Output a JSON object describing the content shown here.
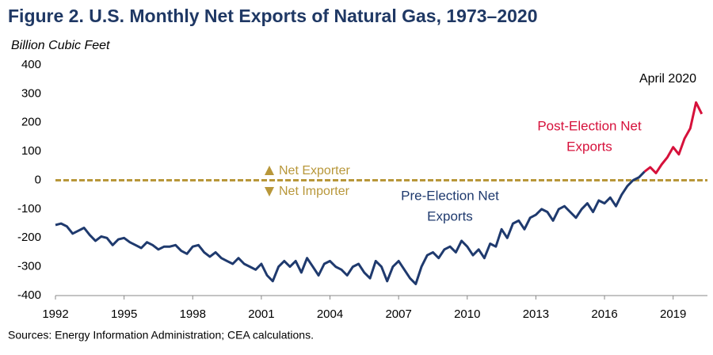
{
  "chart_data": {
    "type": "line",
    "title": "Figure 2. U.S. Monthly Net Exports of Natural Gas, 1973–2020",
    "subtitle": "Billion Cubic Feet",
    "source": "Sources: Energy Information Administration; CEA calculations.",
    "annotations": {
      "exporter": "Net Exporter",
      "importer": "Net Importer",
      "latest": "April 2020"
    },
    "xlim": [
      1992,
      2020.5
    ],
    "xticks": [
      1992,
      1995,
      1998,
      2001,
      2004,
      2007,
      2010,
      2013,
      2016,
      2019
    ],
    "ylim": [
      -400,
      400
    ],
    "yticks": [
      400,
      300,
      200,
      100,
      0,
      -100,
      -200,
      -300,
      -400
    ],
    "reference_color": "#b8973a",
    "series": [
      {
        "name": "Pre-Election Net Exports",
        "label_lines": [
          "Pre-Election Net",
          "Exports"
        ],
        "color": "#1f3a6e",
        "x": [
          1992,
          1992.25,
          1992.5,
          1992.75,
          1993,
          1993.25,
          1993.5,
          1993.75,
          1994,
          1994.25,
          1994.5,
          1994.75,
          1995,
          1995.25,
          1995.5,
          1995.75,
          1996,
          1996.25,
          1996.5,
          1996.75,
          1997,
          1997.25,
          1997.5,
          1997.75,
          1998,
          1998.25,
          1998.5,
          1998.75,
          1999,
          1999.25,
          1999.5,
          1999.75,
          2000,
          2000.25,
          2000.5,
          2000.75,
          2001,
          2001.25,
          2001.5,
          2001.75,
          2002,
          2002.25,
          2002.5,
          2002.75,
          2003,
          2003.25,
          2003.5,
          2003.75,
          2004,
          2004.25,
          2004.5,
          2004.75,
          2005,
          2005.25,
          2005.5,
          2005.75,
          2006,
          2006.25,
          2006.5,
          2006.75,
          2007,
          2007.25,
          2007.5,
          2007.75,
          2008,
          2008.25,
          2008.5,
          2008.75,
          2009,
          2009.25,
          2009.5,
          2009.75,
          2010,
          2010.25,
          2010.5,
          2010.75,
          2011,
          2011.25,
          2011.5,
          2011.75,
          2012,
          2012.25,
          2012.5,
          2012.75,
          2013,
          2013.25,
          2013.5,
          2013.75,
          2014,
          2014.25,
          2014.5,
          2014.75,
          2015,
          2015.25,
          2015.5,
          2015.75,
          2016,
          2016.25,
          2016.5,
          2016.75,
          2017,
          2017.25,
          2017.5,
          2017.75
        ],
        "values": [
          -155,
          -150,
          -160,
          -185,
          -175,
          -165,
          -190,
          -210,
          -195,
          -200,
          -225,
          -205,
          -200,
          -215,
          -225,
          -235,
          -215,
          -225,
          -240,
          -230,
          -230,
          -225,
          -245,
          -255,
          -230,
          -225,
          -250,
          -265,
          -250,
          -270,
          -280,
          -290,
          -270,
          -290,
          -300,
          -310,
          -290,
          -330,
          -350,
          -300,
          -280,
          -300,
          -280,
          -320,
          -270,
          -300,
          -330,
          -290,
          -280,
          -300,
          -310,
          -330,
          -300,
          -290,
          -320,
          -340,
          -280,
          -300,
          -350,
          -300,
          -280,
          -310,
          -340,
          -360,
          -300,
          -260,
          -250,
          -270,
          -240,
          -230,
          -250,
          -210,
          -230,
          -260,
          -240,
          -270,
          -220,
          -230,
          -170,
          -200,
          -150,
          -140,
          -170,
          -130,
          -120,
          -100,
          -110,
          -140,
          -100,
          -90,
          -110,
          -130,
          -100,
          -80,
          -110,
          -70,
          -80,
          -60,
          -90,
          -50,
          -20,
          0,
          10,
          30
        ]
      },
      {
        "name": "Post-Election Net Exports",
        "label_lines": [
          "Post-Election Net",
          "Exports"
        ],
        "color": "#d6113b",
        "x": [
          2017.75,
          2018,
          2018.25,
          2018.5,
          2018.75,
          2019,
          2019.25,
          2019.5,
          2019.75,
          2020,
          2020.25
        ],
        "values": [
          30,
          45,
          25,
          55,
          80,
          115,
          90,
          145,
          180,
          270,
          230
        ]
      }
    ]
  }
}
